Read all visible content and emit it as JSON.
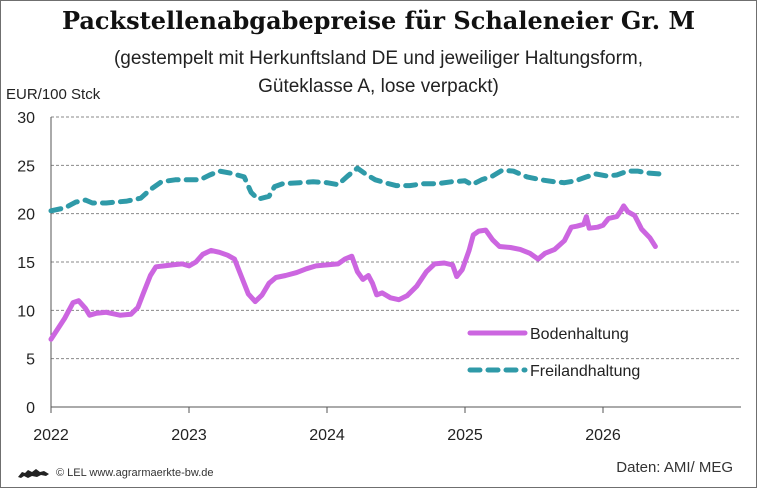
{
  "header": {
    "title": "Packstellenabgabepreise für Schaleneier Gr. M",
    "subtitle_line1": "(gestempelt mit Herkunftsland DE und jeweiliger Haltungsform,",
    "subtitle_line2": "Güteklasse A, lose verpackt)"
  },
  "footer": {
    "credit": "© LEL www.agrarmaerkte-bw.de",
    "source": "Daten: AMI/ MEG"
  },
  "chart_data": {
    "type": "line",
    "ylabel": "EUR/100 Stck",
    "xlabel": "",
    "ylim": [
      0,
      30
    ],
    "yticks": [
      0,
      5,
      10,
      15,
      20,
      25,
      30
    ],
    "xlim": [
      2022,
      2027
    ],
    "xticks": [
      "2022",
      "2023",
      "2024",
      "2025",
      "2026"
    ],
    "grid": "horizontal dashed",
    "legend": "bottom-right inside plot",
    "series": [
      {
        "name": "Bodenhaltung",
        "color": "#cc66e0",
        "style": "solid",
        "points": [
          [
            2022.0,
            7.0
          ],
          [
            2022.1,
            9.2
          ],
          [
            2022.16,
            10.8
          ],
          [
            2022.2,
            11.0
          ],
          [
            2022.25,
            10.2
          ],
          [
            2022.28,
            9.5
          ],
          [
            2022.33,
            9.7
          ],
          [
            2022.4,
            9.8
          ],
          [
            2022.5,
            9.5
          ],
          [
            2022.58,
            9.6
          ],
          [
            2022.63,
            10.3
          ],
          [
            2022.67,
            11.8
          ],
          [
            2022.72,
            13.6
          ],
          [
            2022.76,
            14.5
          ],
          [
            2022.82,
            14.6
          ],
          [
            2022.88,
            14.7
          ],
          [
            2022.95,
            14.8
          ],
          [
            2023.0,
            14.6
          ],
          [
            2023.05,
            15.0
          ],
          [
            2023.1,
            15.8
          ],
          [
            2023.16,
            16.2
          ],
          [
            2023.22,
            16.0
          ],
          [
            2023.28,
            15.7
          ],
          [
            2023.33,
            15.3
          ],
          [
            2023.38,
            13.5
          ],
          [
            2023.43,
            11.7
          ],
          [
            2023.48,
            10.9
          ],
          [
            2023.53,
            11.6
          ],
          [
            2023.58,
            12.8
          ],
          [
            2023.63,
            13.4
          ],
          [
            2023.7,
            13.6
          ],
          [
            2023.78,
            13.9
          ],
          [
            2023.85,
            14.3
          ],
          [
            2023.92,
            14.6
          ],
          [
            2024.0,
            14.7
          ],
          [
            2024.08,
            14.8
          ],
          [
            2024.13,
            15.3
          ],
          [
            2024.18,
            15.6
          ],
          [
            2024.22,
            14.0
          ],
          [
            2024.26,
            13.2
          ],
          [
            2024.3,
            13.6
          ],
          [
            2024.33,
            12.8
          ],
          [
            2024.36,
            11.6
          ],
          [
            2024.4,
            11.8
          ],
          [
            2024.46,
            11.3
          ],
          [
            2024.52,
            11.1
          ],
          [
            2024.58,
            11.5
          ],
          [
            2024.65,
            12.5
          ],
          [
            2024.72,
            14.0
          ],
          [
            2024.78,
            14.8
          ],
          [
            2024.85,
            14.9
          ],
          [
            2024.91,
            14.7
          ],
          [
            2024.94,
            13.5
          ],
          [
            2024.98,
            14.2
          ],
          [
            2025.03,
            16.2
          ],
          [
            2025.06,
            17.8
          ],
          [
            2025.1,
            18.2
          ],
          [
            2025.15,
            18.3
          ],
          [
            2025.2,
            17.3
          ],
          [
            2025.25,
            16.6
          ],
          [
            2025.33,
            16.5
          ],
          [
            2025.4,
            16.3
          ],
          [
            2025.47,
            15.9
          ],
          [
            2025.53,
            15.3
          ],
          [
            2025.58,
            15.9
          ],
          [
            2025.65,
            16.3
          ],
          [
            2025.72,
            17.2
          ],
          [
            2025.77,
            18.6
          ],
          [
            2025.81,
            18.7
          ],
          [
            2025.86,
            18.9
          ],
          [
            2025.88,
            19.7
          ],
          [
            2025.9,
            18.5
          ],
          [
            2025.96,
            18.6
          ],
          [
            2026.0,
            18.8
          ],
          [
            2026.04,
            19.5
          ],
          [
            2026.1,
            19.7
          ],
          [
            2026.13,
            20.3
          ],
          [
            2026.15,
            20.8
          ],
          [
            2026.18,
            20.2
          ],
          [
            2026.23,
            19.8
          ],
          [
            2026.28,
            18.4
          ],
          [
            2026.34,
            17.5
          ],
          [
            2026.38,
            16.6
          ]
        ]
      },
      {
        "name": "Freilandhaltung",
        "color": "#2f9aa8",
        "style": "dashed",
        "points": [
          [
            2022.0,
            20.3
          ],
          [
            2022.1,
            20.6
          ],
          [
            2022.18,
            21.2
          ],
          [
            2022.25,
            21.4
          ],
          [
            2022.3,
            21.1
          ],
          [
            2022.4,
            21.1
          ],
          [
            2022.55,
            21.3
          ],
          [
            2022.65,
            21.6
          ],
          [
            2022.72,
            22.5
          ],
          [
            2022.8,
            23.3
          ],
          [
            2022.9,
            23.5
          ],
          [
            2023.0,
            23.5
          ],
          [
            2023.08,
            23.5
          ],
          [
            2023.15,
            24.0
          ],
          [
            2023.22,
            24.4
          ],
          [
            2023.3,
            24.2
          ],
          [
            2023.4,
            23.8
          ],
          [
            2023.45,
            22.2
          ],
          [
            2023.5,
            21.5
          ],
          [
            2023.58,
            21.8
          ],
          [
            2023.62,
            22.8
          ],
          [
            2023.68,
            23.1
          ],
          [
            2023.8,
            23.2
          ],
          [
            2023.9,
            23.3
          ],
          [
            2024.0,
            23.2
          ],
          [
            2024.08,
            23.0
          ],
          [
            2024.15,
            23.9
          ],
          [
            2024.22,
            24.7
          ],
          [
            2024.28,
            24.1
          ],
          [
            2024.35,
            23.5
          ],
          [
            2024.42,
            23.2
          ],
          [
            2024.5,
            22.9
          ],
          [
            2024.6,
            22.9
          ],
          [
            2024.7,
            23.1
          ],
          [
            2024.8,
            23.1
          ],
          [
            2024.9,
            23.3
          ],
          [
            2025.0,
            23.4
          ],
          [
            2025.05,
            23.0
          ],
          [
            2025.12,
            23.5
          ],
          [
            2025.2,
            23.9
          ],
          [
            2025.27,
            24.5
          ],
          [
            2025.35,
            24.4
          ],
          [
            2025.45,
            23.8
          ],
          [
            2025.55,
            23.5
          ],
          [
            2025.65,
            23.3
          ],
          [
            2025.72,
            23.2
          ],
          [
            2025.8,
            23.4
          ],
          [
            2025.88,
            23.8
          ],
          [
            2025.95,
            24.1
          ],
          [
            2026.03,
            23.9
          ],
          [
            2026.1,
            24.0
          ],
          [
            2026.18,
            24.4
          ],
          [
            2026.25,
            24.4
          ],
          [
            2026.33,
            24.2
          ],
          [
            2026.42,
            24.1
          ]
        ]
      }
    ]
  }
}
